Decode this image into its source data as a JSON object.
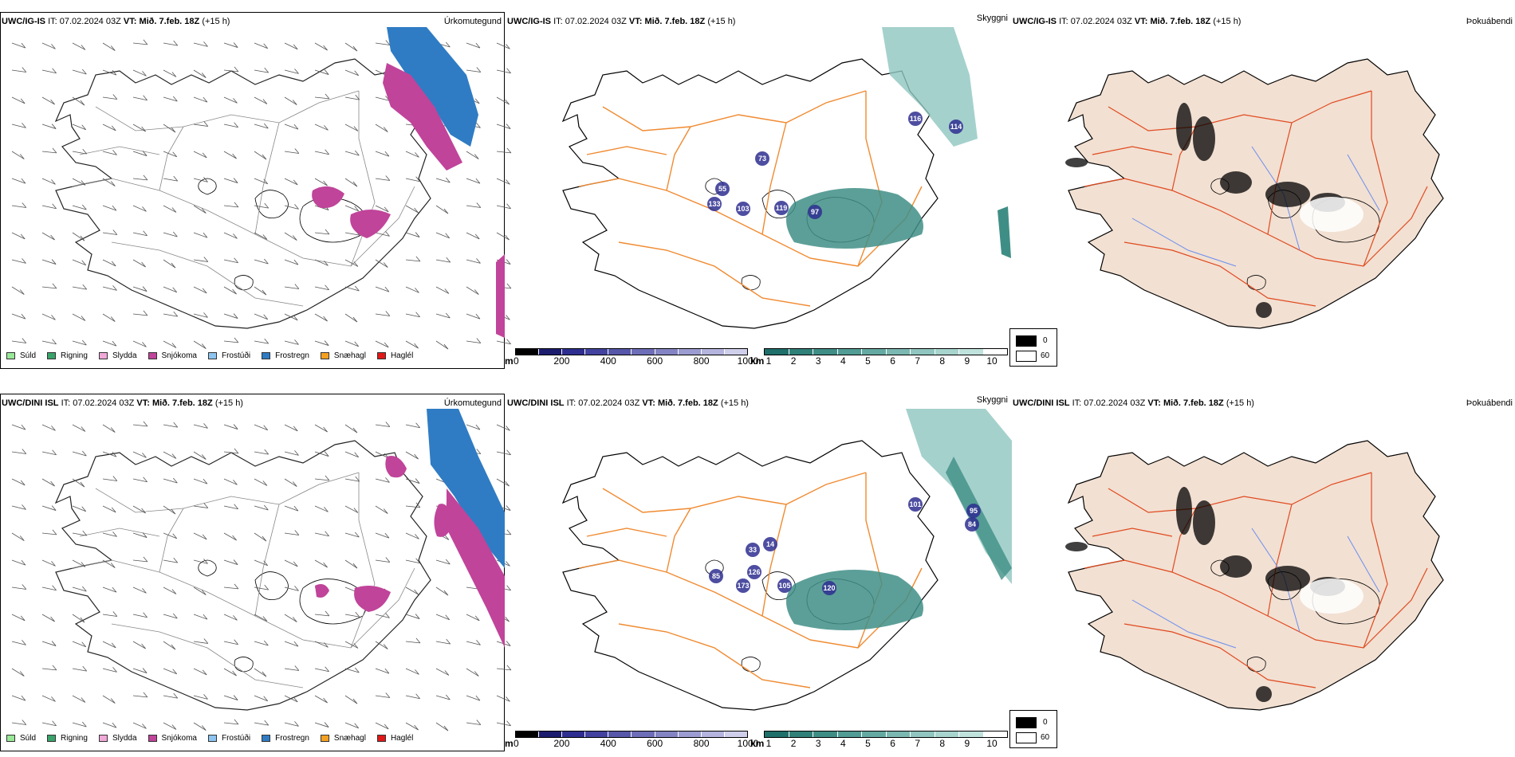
{
  "rows": [
    {
      "model": "UWC/IG-IS",
      "it_label": "IT:",
      "it_value": "07.02.2024 03Z",
      "vt_label": "VT:",
      "vt_value": "Mið. 7.feb. 18Z",
      "lead": "(+15 h)",
      "cloud_labels": [
        "116",
        "114",
        "55",
        "133",
        "103",
        "119",
        "97",
        "73"
      ]
    },
    {
      "model": "UWC/DINI ISL",
      "it_label": "IT:",
      "it_value": "07.02.2024 03Z",
      "vt_label": "VT:",
      "vt_value": "Mið. 7.feb. 18Z",
      "lead": "(+15 h)",
      "cloud_labels": [
        "101",
        "95",
        "84",
        "33",
        "126",
        "85",
        "173",
        "105",
        "120",
        "14"
      ]
    }
  ],
  "panel_titles": {
    "precip": "Úrkomutegund",
    "visibility": "Skyggni",
    "fog": "Þokuábendi"
  },
  "precip_legend": [
    {
      "label": "Súld",
      "color": "#98e898"
    },
    {
      "label": "Rigning",
      "color": "#3aa36a"
    },
    {
      "label": "Slydda",
      "color": "#f0a8d8"
    },
    {
      "label": "Snjókoma",
      "color": "#c0449a"
    },
    {
      "label": "Frostúði",
      "color": "#8ec4f0"
    },
    {
      "label": "Frostregn",
      "color": "#2f7cc4"
    },
    {
      "label": "Snæhagl",
      "color": "#f5a020"
    },
    {
      "label": "Haglél",
      "color": "#e01818"
    }
  ],
  "cloud_colorbar": {
    "unit": "m",
    "ticks": [
      "0",
      "200",
      "400",
      "600",
      "800",
      "1000"
    ],
    "colors": [
      "#000000",
      "#1c1c6e",
      "#2e2e90",
      "#43439f",
      "#5757aa",
      "#6e6eb8",
      "#8484c4",
      "#9c9cd2",
      "#b4b4de",
      "#cfcfeb"
    ]
  },
  "vis_colorbar": {
    "unit": "km",
    "ticks": [
      "1",
      "2",
      "3",
      "4",
      "5",
      "6",
      "7",
      "8",
      "9",
      "10"
    ],
    "colors": [
      "#1f6f6a",
      "#2f8078",
      "#3f8e86",
      "#519c94",
      "#65aaa2",
      "#7ab8b1",
      "#90c6bf",
      "#a8d4ce",
      "#c0e2dd",
      "#ffffff"
    ]
  },
  "fog_legend": [
    {
      "value": "0",
      "color": "#000000"
    },
    {
      "value": "60",
      "color": "#ffffff"
    }
  ],
  "colors": {
    "road": "#f08a30",
    "fog_land": "#f2e0d2",
    "fog_road": "#e04a20",
    "fog_river": "#6a8ef0",
    "coast": "#000000",
    "frostregn": "#2f7cc4",
    "snjokoma": "#c0449a"
  }
}
